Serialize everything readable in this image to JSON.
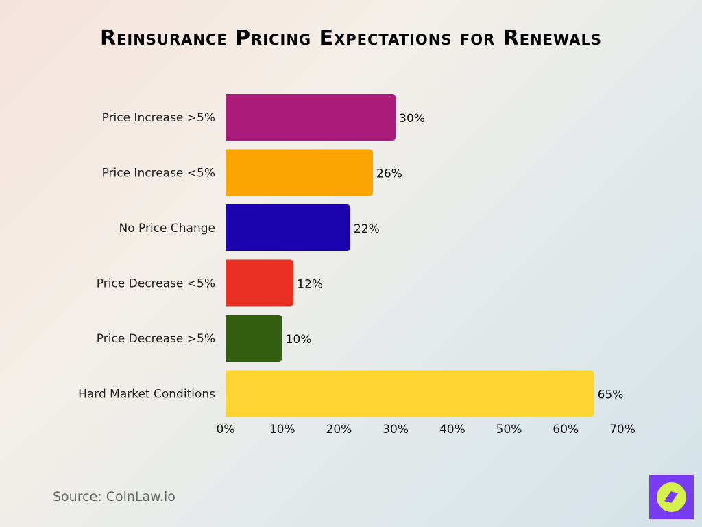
{
  "chart_data": {
    "type": "bar",
    "orientation": "horizontal",
    "title": "Reinsurance Pricing Expectations for Renewals",
    "categories": [
      "Price Increase >5%",
      "Price Increase <5%",
      "No Price Change",
      "Price Decrease <5%",
      "Price Decrease >5%",
      "Hard Market Conditions"
    ],
    "values": [
      30,
      26,
      22,
      12,
      10,
      65
    ],
    "data_labels": [
      "30%",
      "26%",
      "22%",
      "12%",
      "10%",
      "65%"
    ],
    "colors": [
      "#ab1c7a",
      "#fca404",
      "#1b04ad",
      "#e82f22",
      "#335e10",
      "#fed430"
    ],
    "xlim": [
      0,
      70
    ],
    "xticks": [
      0,
      10,
      20,
      30,
      40,
      50,
      60,
      70
    ],
    "xtick_labels": [
      "0%",
      "10%",
      "20%",
      "30%",
      "40%",
      "50%",
      "60%",
      "70%"
    ],
    "xlabel": "",
    "ylabel": "",
    "grid": false,
    "legend": "none"
  },
  "source": "Source: CoinLaw.io",
  "logo": {
    "icon": "compass-icon",
    "bg": "#7a3cf2",
    "fg": "#d4f04a"
  }
}
